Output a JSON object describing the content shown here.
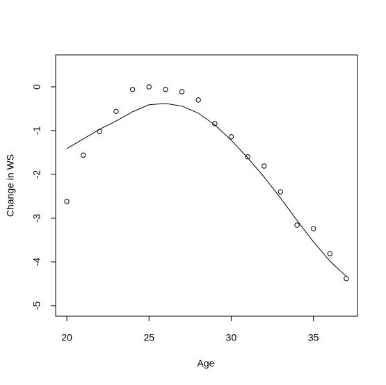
{
  "chart_data": {
    "type": "scatter",
    "xlabel": "Age",
    "ylabel": "Change in WS",
    "x": [
      20,
      21,
      22,
      23,
      24,
      25,
      26,
      27,
      28,
      29,
      30,
      31,
      32,
      33,
      34,
      35,
      36,
      37
    ],
    "series": [
      {
        "style": "points",
        "color": "#000000",
        "values": [
          -2.62,
          -1.56,
          -1.02,
          -0.56,
          -0.06,
          0.0,
          -0.06,
          -0.11,
          -0.3,
          -0.84,
          -1.14,
          -1.6,
          -1.81,
          -2.4,
          -3.16,
          -3.24,
          -3.81,
          -4.38
        ]
      },
      {
        "style": "line",
        "color": "#000000",
        "values": [
          -1.41,
          -1.19,
          -0.97,
          -0.78,
          -0.57,
          -0.41,
          -0.38,
          -0.44,
          -0.6,
          -0.87,
          -1.22,
          -1.62,
          -2.06,
          -2.54,
          -3.05,
          -3.54,
          -3.98,
          -4.33
        ]
      }
    ],
    "xlim": [
      19.32,
      37.68
    ],
    "xticks": [
      20,
      25,
      30,
      35
    ],
    "ylim": [
      -5.24,
      0.73
    ],
    "yticks": [
      -5,
      -4,
      -3,
      -2,
      -1,
      0
    ]
  }
}
